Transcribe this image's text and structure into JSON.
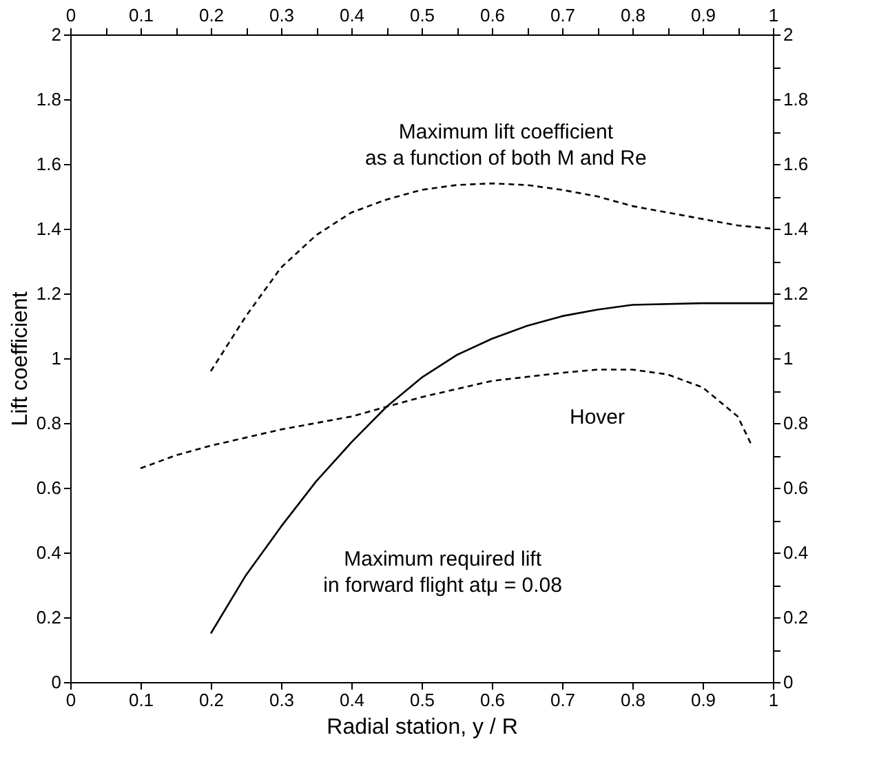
{
  "chart_data": {
    "type": "line",
    "xlabel": "Radial station, y / R",
    "ylabel": "Lift coefficient",
    "xlim": [
      0,
      1
    ],
    "ylim": [
      0,
      2
    ],
    "x2lim": [
      0,
      1
    ],
    "y2lim": [
      0,
      2
    ],
    "xticks": [
      0,
      {
        "value": 0.05,
        "label": null
      },
      0.1,
      {
        "value": 0.15,
        "label": null
      },
      0.2,
      {
        "value": 0.25,
        "label": null
      },
      0.3,
      {
        "value": 0.35,
        "label": null
      },
      0.4,
      {
        "value": 0.45,
        "label": null
      },
      0.5,
      {
        "value": 0.55,
        "label": null
      },
      0.6,
      {
        "value": 0.65,
        "label": null
      },
      0.7,
      {
        "value": 0.75,
        "label": null
      },
      0.8,
      {
        "value": 0.85,
        "label": null
      },
      0.9,
      {
        "value": 0.95,
        "label": null
      },
      1
    ],
    "x2ticks": [
      0,
      {
        "value": 0.05,
        "label": null
      },
      0.1,
      {
        "value": 0.15,
        "label": null
      },
      0.2,
      {
        "value": 0.25,
        "label": null
      },
      0.3,
      {
        "value": 0.35,
        "label": null
      },
      0.4,
      {
        "value": 0.45,
        "label": null
      },
      0.5,
      {
        "value": 0.55,
        "label": null
      },
      0.6,
      {
        "value": 0.65,
        "label": null
      },
      0.7,
      {
        "value": 0.75,
        "label": null
      },
      0.8,
      {
        "value": 0.85,
        "label": null
      },
      0.9,
      {
        "value": 0.95,
        "label": null
      },
      1
    ],
    "yticks": [
      0,
      {
        "value": 0.1,
        "label": null
      },
      0.2,
      {
        "value": 0.3,
        "label": null
      },
      0.4,
      {
        "value": 0.5,
        "label": null
      },
      0.6,
      {
        "value": 0.7,
        "label": null
      },
      0.8,
      {
        "value": 0.9,
        "label": null
      },
      1,
      {
        "value": 1.1,
        "label": null
      },
      1.2,
      {
        "value": 1.3,
        "label": null
      },
      1.4,
      {
        "value": 1.5,
        "label": null
      },
      1.6,
      {
        "value": 1.7,
        "label": null
      },
      1.8,
      {
        "value": 1.9,
        "label": null
      },
      2
    ],
    "y2ticks": [
      0,
      {
        "value": 0.1,
        "label": null
      },
      0.2,
      {
        "value": 0.3,
        "label": null
      },
      0.4,
      {
        "value": 0.5,
        "label": null
      },
      0.6,
      {
        "value": 0.7,
        "label": null
      },
      0.8,
      {
        "value": 0.9,
        "label": null
      },
      1,
      {
        "value": 1.1,
        "label": null
      },
      1.2,
      {
        "value": 1.3,
        "label": null
      },
      1.4,
      {
        "value": 1.5,
        "label": null
      },
      1.6,
      {
        "value": 1.7,
        "label": null
      },
      1.8,
      {
        "value": 1.9,
        "label": null
      },
      2
    ],
    "grid": false,
    "series": [
      {
        "color": "#000000",
        "line_style": "dashed",
        "x": [
          0.2,
          0.25,
          0.3,
          0.35,
          0.4,
          0.45,
          0.5,
          0.55,
          0.6,
          0.65,
          0.7,
          0.75,
          0.8,
          0.85,
          0.9,
          0.95,
          1.0
        ],
        "values": [
          0.96,
          1.13,
          1.28,
          1.38,
          1.45,
          1.49,
          1.52,
          1.535,
          1.54,
          1.535,
          1.52,
          1.5,
          1.47,
          1.45,
          1.43,
          1.41,
          1.4
        ]
      },
      {
        "color": "#000000",
        "line_style": "dashed",
        "x": [
          0.1,
          0.15,
          0.2,
          0.3,
          0.4,
          0.5,
          0.6,
          0.7,
          0.75,
          0.8,
          0.85,
          0.9,
          0.95,
          0.97
        ],
        "values": [
          0.66,
          0.7,
          0.73,
          0.78,
          0.82,
          0.88,
          0.93,
          0.955,
          0.965,
          0.965,
          0.95,
          0.91,
          0.82,
          0.73
        ]
      },
      {
        "color": "#000000",
        "line_style": "solid",
        "x": [
          0.2,
          0.25,
          0.3,
          0.35,
          0.4,
          0.45,
          0.5,
          0.55,
          0.6,
          0.65,
          0.7,
          0.75,
          0.8,
          0.9,
          1.0
        ],
        "values": [
          0.15,
          0.33,
          0.48,
          0.62,
          0.74,
          0.85,
          0.94,
          1.01,
          1.06,
          1.1,
          1.13,
          1.15,
          1.165,
          1.17,
          1.17
        ]
      }
    ],
    "annotations": [
      "Maximum lift coefficient\nas a function of both M and Re",
      "Hover",
      "Maximum required lift\nin forward flight atμ = 0.08"
    ]
  }
}
